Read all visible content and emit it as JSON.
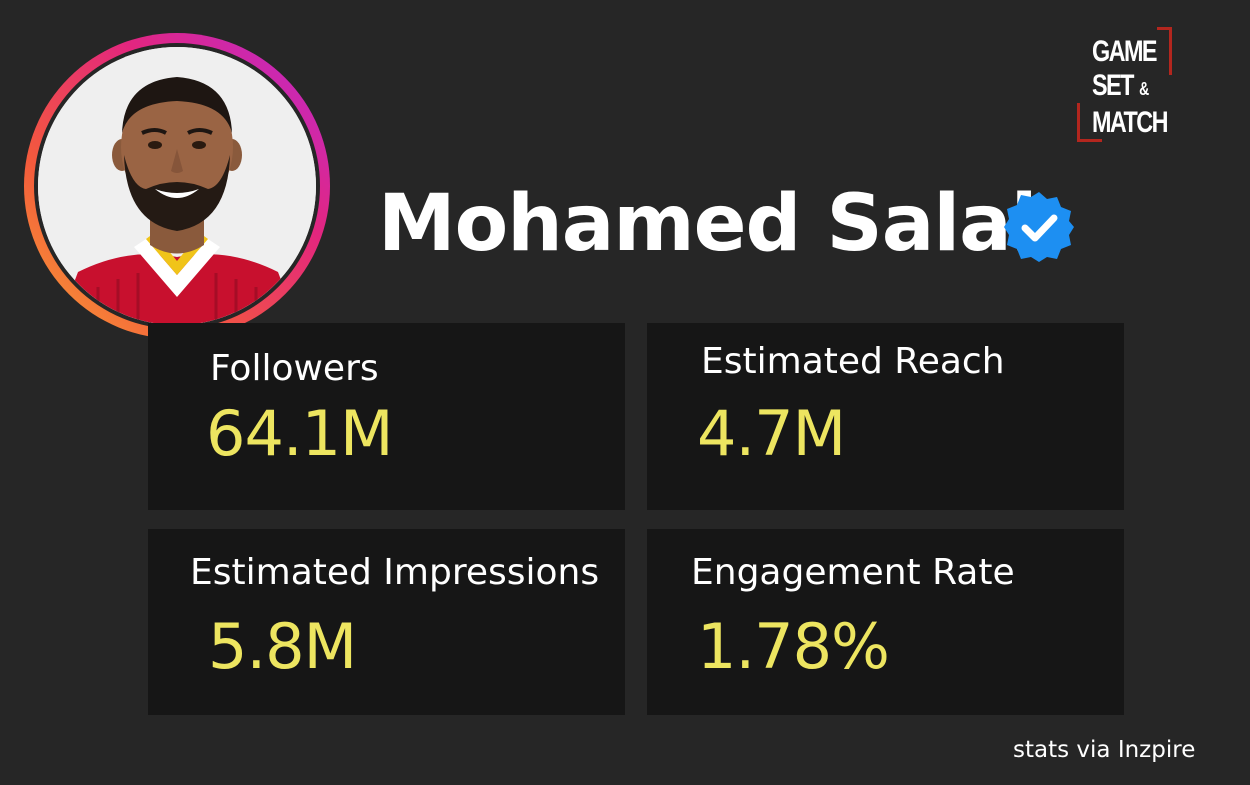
{
  "profile": {
    "name": "Mohamed Salah",
    "verified": true,
    "accent_ring_colors": [
      "#f7a534",
      "#e3267e",
      "#b92ad6"
    ]
  },
  "brand": {
    "line1": "GAME",
    "line2": "SET",
    "amp": "&",
    "line3": "MATCH",
    "accent_color": "#b3261e"
  },
  "stats": {
    "followers": {
      "label": "Followers",
      "value": "64.1M"
    },
    "reach": {
      "label": "Estimated Reach",
      "value": "4.7M"
    },
    "impressions": {
      "label": "Estimated Impressions",
      "value": "5.8M"
    },
    "engagement": {
      "label": "Engagement Rate",
      "value": "1.78%"
    }
  },
  "footer": {
    "text": "stats via Inzpire"
  },
  "colors": {
    "background": "#262626",
    "card": "#161616",
    "value_text": "#ede560",
    "verified_badge": "#1d8ff2"
  }
}
